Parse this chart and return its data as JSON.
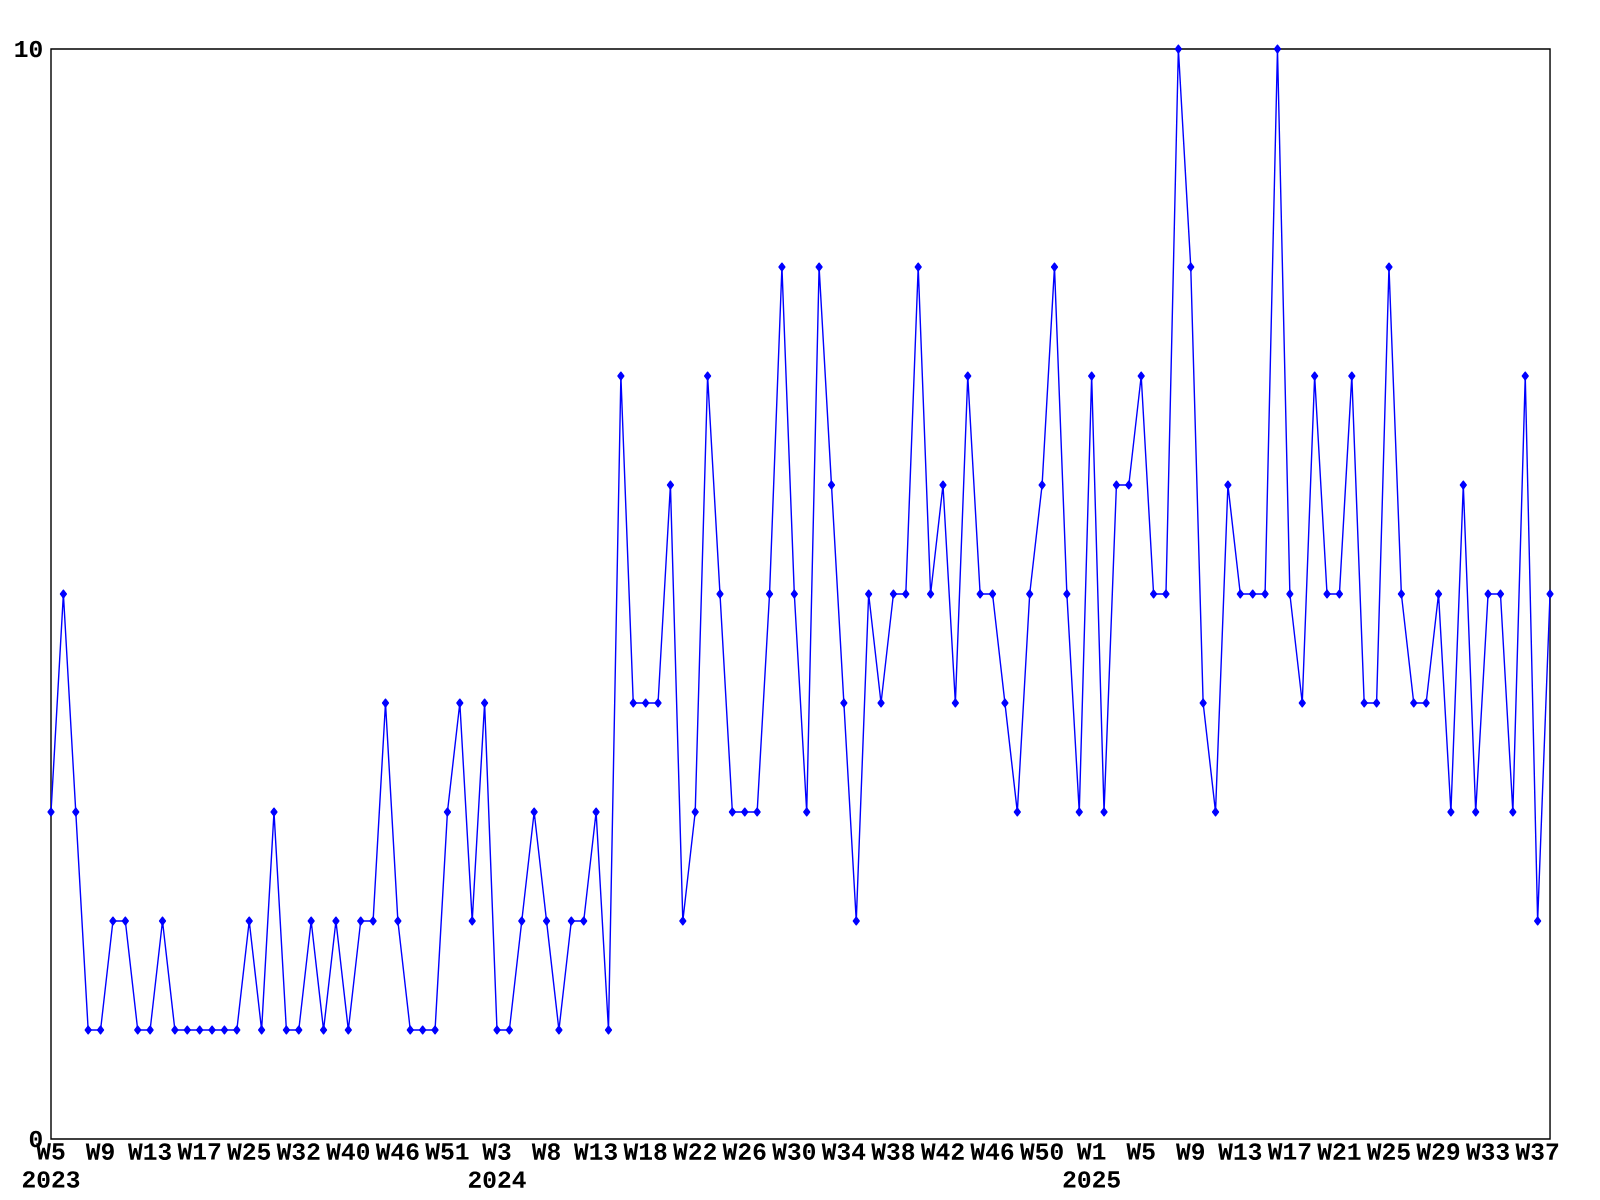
{
  "chart_data": {
    "type": "line",
    "categories": [
      "W5 2023",
      null,
      null,
      null,
      "W9",
      null,
      null,
      null,
      "W13",
      null,
      null,
      null,
      "W17",
      null,
      null,
      null,
      "W25",
      null,
      null,
      null,
      "W32",
      null,
      null,
      null,
      "W40",
      null,
      null,
      null,
      "W46",
      null,
      null,
      null,
      "W51",
      null,
      null,
      null,
      "W3 2024",
      null,
      null,
      null,
      "W8",
      null,
      null,
      null,
      "W13",
      null,
      null,
      null,
      "W18",
      null,
      null,
      null,
      "W22",
      null,
      null,
      null,
      "W26",
      null,
      null,
      null,
      "W30",
      null,
      null,
      null,
      "W34",
      null,
      null,
      null,
      "W38",
      null,
      null,
      null,
      "W42",
      null,
      null,
      null,
      "W46",
      null,
      null,
      null,
      "W50",
      null,
      null,
      null,
      "W1 2025",
      null,
      null,
      null,
      "W5",
      null,
      null,
      null,
      "W9",
      null,
      null,
      null,
      "W13",
      null,
      null,
      null,
      "W17",
      null,
      null,
      null,
      "W21",
      null,
      null,
      null,
      "W25",
      null,
      null,
      null,
      "W29",
      null,
      null,
      null,
      "W33",
      null,
      null,
      null,
      "W37",
      null
    ],
    "values": [
      3,
      5,
      3,
      1,
      1,
      2,
      2,
      1,
      1,
      2,
      1,
      1,
      1,
      1,
      1,
      1,
      2,
      1,
      3,
      1,
      1,
      2,
      1,
      2,
      1,
      2,
      2,
      4,
      2,
      1,
      1,
      1,
      3,
      4,
      2,
      4,
      1,
      1,
      2,
      3,
      2,
      1,
      2,
      2,
      3,
      1,
      7,
      4,
      4,
      4,
      6,
      2,
      3,
      7,
      5,
      3,
      3,
      3,
      5,
      8,
      5,
      3,
      8,
      6,
      4,
      2,
      5,
      4,
      5,
      5,
      8,
      5,
      6,
      4,
      7,
      5,
      5,
      4,
      3,
      5,
      6,
      8,
      5,
      3,
      7,
      3,
      6,
      6,
      7,
      5,
      5,
      10,
      8,
      4,
      3,
      6,
      5,
      5,
      5,
      10,
      5,
      4,
      7,
      5,
      5,
      7,
      4,
      4,
      8,
      5,
      4,
      4,
      5,
      3,
      6,
      3,
      5,
      5,
      3,
      7,
      2,
      5
    ],
    "color": "#0000ff",
    "ylim": [
      0,
      10
    ],
    "yticks": [
      0,
      10
    ],
    "marker": "diamond",
    "line_style": "solid"
  }
}
